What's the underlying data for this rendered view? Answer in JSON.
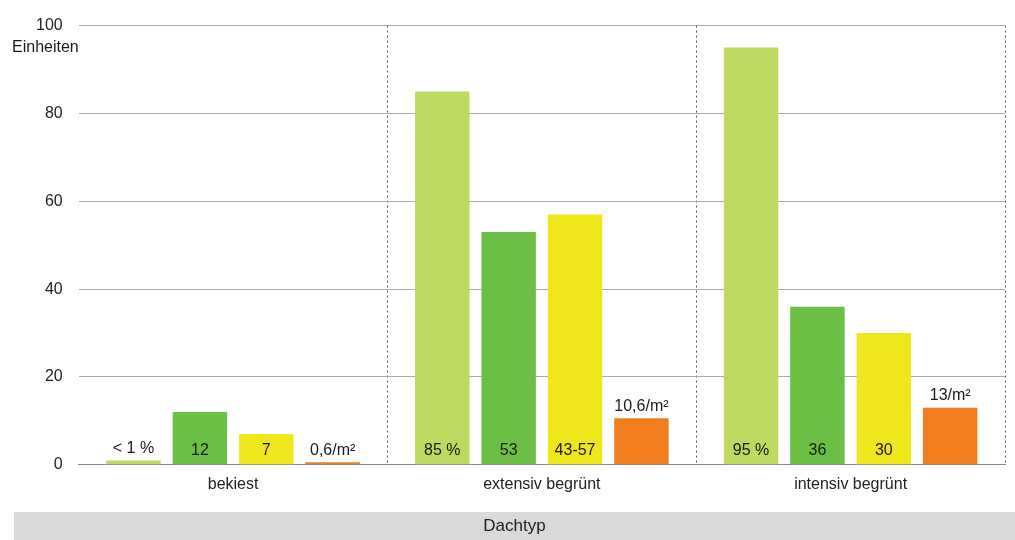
{
  "chart_data": {
    "type": "bar",
    "xlabel": "Dachtyp",
    "ylabel": "Einheiten",
    "categories": [
      "bekiest",
      "extensiv begrünt",
      "intensiv begrünt"
    ],
    "series": [
      {
        "color": "#bdd960",
        "values": [
          1,
          85,
          95
        ],
        "value_labels": [
          "< 1 %",
          "85 %",
          "95 %"
        ]
      },
      {
        "color": "#6bbf44",
        "values": [
          12,
          53,
          36
        ],
        "value_labels": [
          "12",
          "53",
          "36"
        ]
      },
      {
        "color": "#efe71b",
        "values": [
          7,
          57,
          30
        ],
        "value_labels": [
          "7",
          "43-57",
          "30"
        ]
      },
      {
        "color": "#f07e1e",
        "values": [
          0.6,
          10.6,
          13
        ],
        "value_labels": [
          "0,6/m²",
          "10,6/m²",
          "13/m²"
        ]
      }
    ],
    "ylim": [
      0,
      100
    ],
    "yticks": [
      0,
      20,
      40,
      60,
      80,
      100
    ],
    "grid": true
  }
}
